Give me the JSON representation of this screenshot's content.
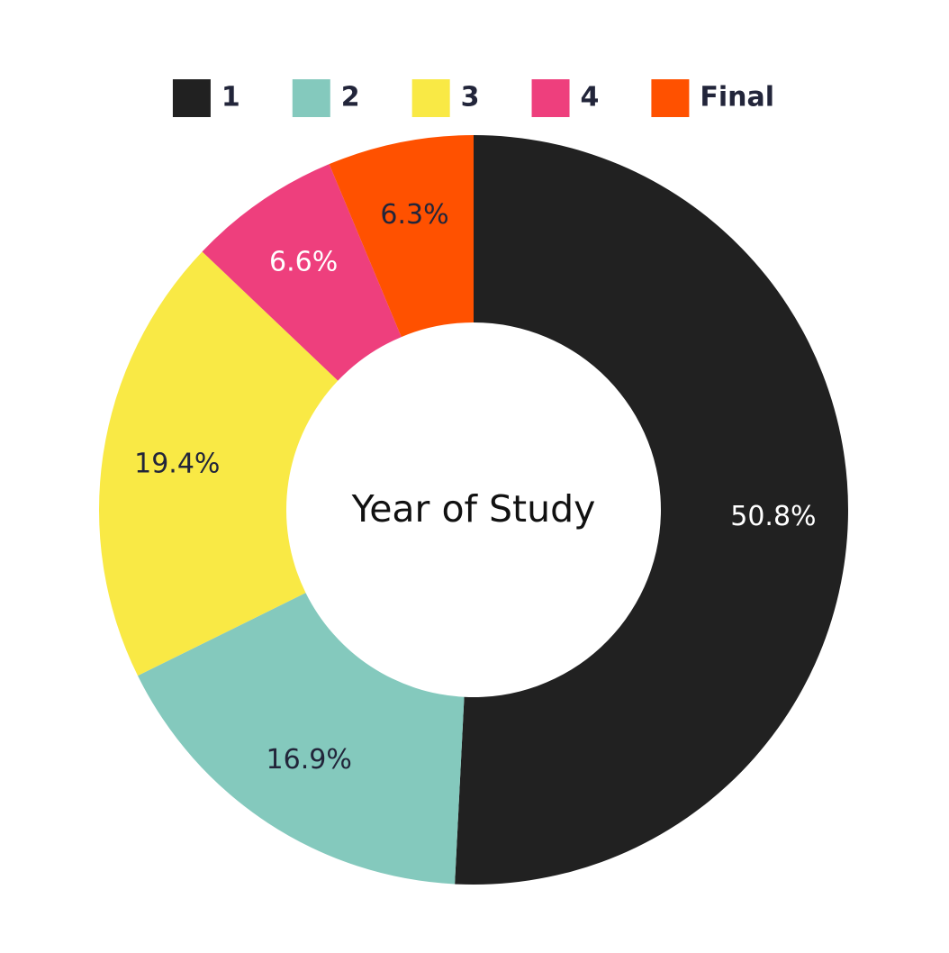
{
  "chart_data": {
    "type": "pie",
    "donut": true,
    "center_label": "Year of Study",
    "legend_placement": "top",
    "categories": [
      "1",
      "2",
      "3",
      "4",
      "Final"
    ],
    "values": [
      50.8,
      16.9,
      19.4,
      6.6,
      6.3
    ],
    "value_labels": [
      "50.8%",
      "16.9%",
      "19.4%",
      "6.6%",
      "6.3%"
    ],
    "colors": [
      "#212121",
      "#84c9bd",
      "#f9e945",
      "#ee3f7d",
      "#ff5100"
    ],
    "label_colors": [
      "#ffffff",
      "#22253a",
      "#22253a",
      "#ffffff",
      "#22253a"
    ]
  }
}
